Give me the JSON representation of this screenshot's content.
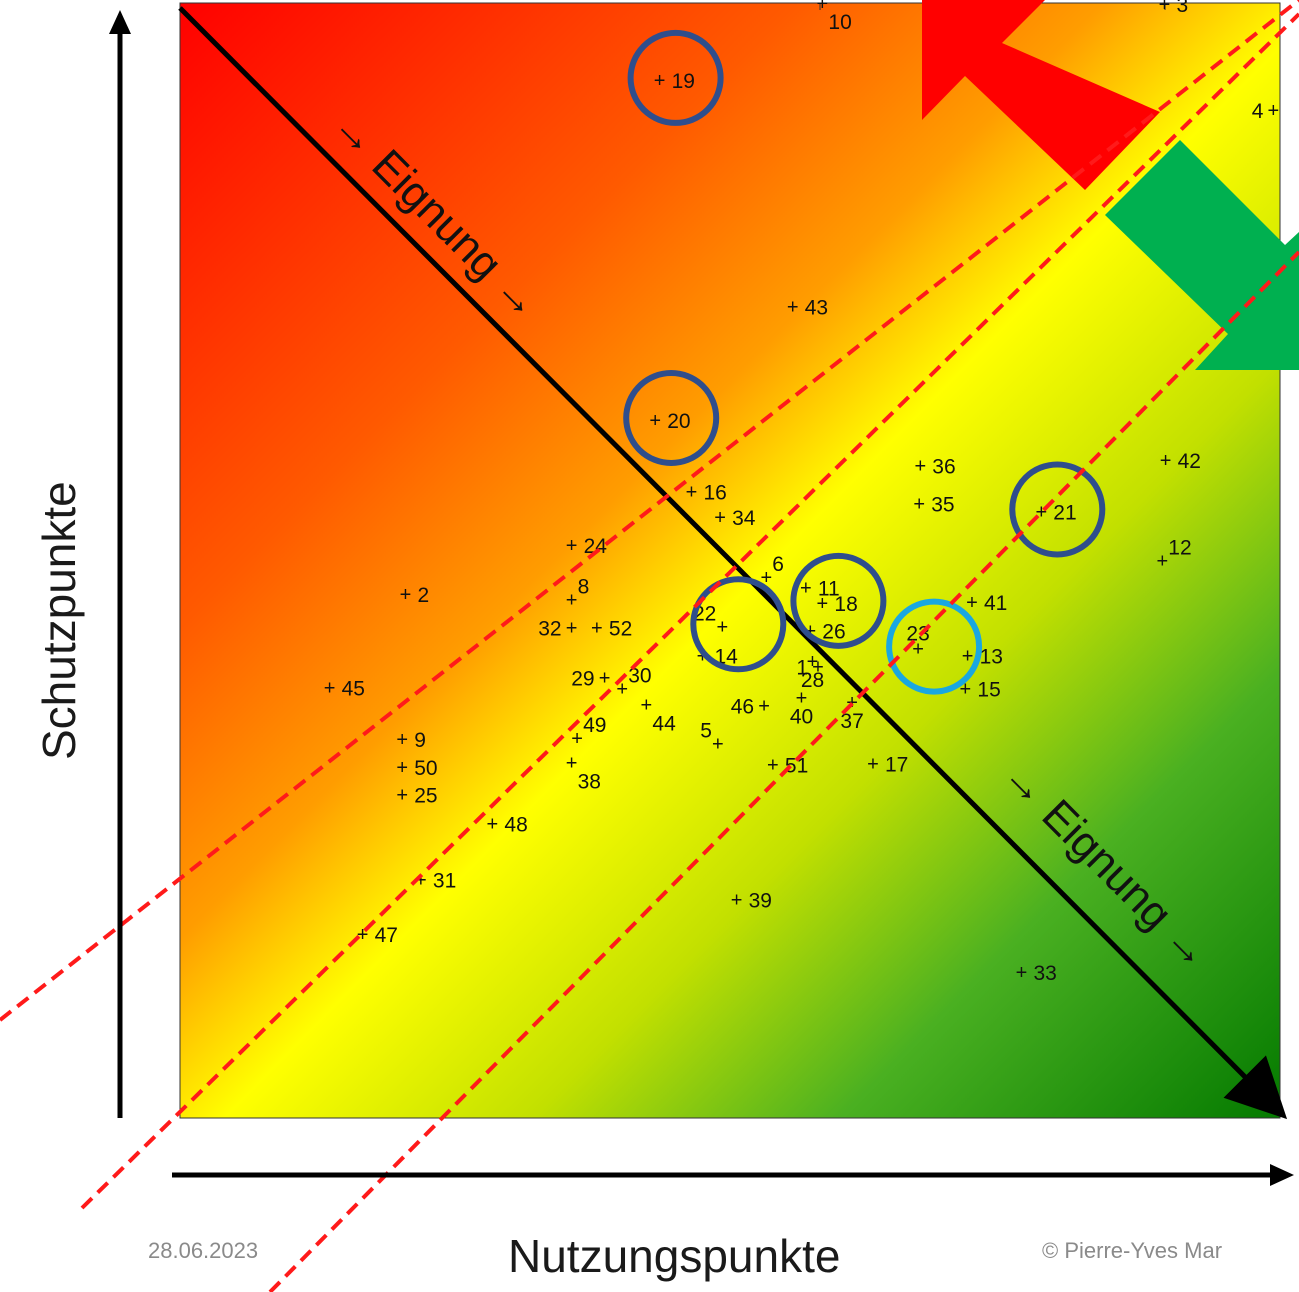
{
  "chart_data": {
    "type": "scatter",
    "xlabel": "Nutzungspunkte",
    "ylabel": "Schutzpunkte",
    "xlim": [
      0,
      100
    ],
    "ylim": [
      0,
      100
    ],
    "grid": false,
    "background": "diagonal gradient red (top-left) → orange → yellow (center band) → green (bottom-right)",
    "diagonal_label": "Eignung",
    "diagonal_label_arrow": "→ Eignung →",
    "points": [
      {
        "id": "2",
        "x": 20.5,
        "y": 47.0,
        "lab": "right"
      },
      {
        "id": "3",
        "x": 89.5,
        "y": 99.9,
        "lab": "right"
      },
      {
        "id": "4",
        "x": 99.4,
        "y": 90.4,
        "lab": "left"
      },
      {
        "id": "5",
        "x": 48.9,
        "y": 33.6,
        "lab": "above-left"
      },
      {
        "id": "6",
        "x": 53.3,
        "y": 48.5,
        "lab": "above-right"
      },
      {
        "id": "8",
        "x": 35.6,
        "y": 46.5,
        "lab": "above-right"
      },
      {
        "id": "9",
        "x": 20.2,
        "y": 34.0,
        "lab": "right"
      },
      {
        "id": "10",
        "x": 58.4,
        "y": 100.0,
        "lab": "below-right"
      },
      {
        "id": "11",
        "x": 56.9,
        "y": 47.6,
        "lab": "right"
      },
      {
        "id": "12",
        "x": 89.3,
        "y": 50.0,
        "lab": "above-right"
      },
      {
        "id": "13",
        "x": 71.6,
        "y": 41.5,
        "lab": "right"
      },
      {
        "id": "14",
        "x": 47.5,
        "y": 41.5,
        "lab": "right"
      },
      {
        "id": "15",
        "x": 71.4,
        "y": 38.5,
        "lab": "right"
      },
      {
        "id": "16",
        "x": 46.5,
        "y": 56.2,
        "lab": "right"
      },
      {
        "id": "17",
        "x": 63.0,
        "y": 31.8,
        "lab": "right"
      },
      {
        "id": "18",
        "x": 58.4,
        "y": 46.2,
        "lab": "right"
      },
      {
        "id": "19",
        "x": 43.6,
        "y": 93.1,
        "lab": "right"
      },
      {
        "id": "20",
        "x": 43.2,
        "y": 62.6,
        "lab": "right"
      },
      {
        "id": "21",
        "x": 78.3,
        "y": 54.4,
        "lab": "right"
      },
      {
        "id": "22",
        "x": 49.3,
        "y": 44.1,
        "lab": "above-left"
      },
      {
        "id": "23",
        "x": 67.1,
        "y": 42.1,
        "lab": "above"
      },
      {
        "id": "24",
        "x": 35.6,
        "y": 51.4,
        "lab": "right"
      },
      {
        "id": "25",
        "x": 20.2,
        "y": 29.0,
        "lab": "right"
      },
      {
        "id": "26",
        "x": 57.3,
        "y": 43.7,
        "lab": "right"
      },
      {
        "id": "28",
        "x": 57.5,
        "y": 41.0,
        "lab": "below"
      },
      {
        "id": "29",
        "x": 38.6,
        "y": 39.5,
        "lab": "left"
      },
      {
        "id": "30",
        "x": 40.2,
        "y": 38.5,
        "lab": "above-right"
      },
      {
        "id": "31",
        "x": 21.9,
        "y": 21.4,
        "lab": "right"
      },
      {
        "id": "32",
        "x": 35.6,
        "y": 44.0,
        "lab": "left"
      },
      {
        "id": "33",
        "x": 76.5,
        "y": 13.1,
        "lab": "right"
      },
      {
        "id": "34",
        "x": 49.1,
        "y": 53.9,
        "lab": "right"
      },
      {
        "id": "35",
        "x": 67.2,
        "y": 55.1,
        "lab": "right"
      },
      {
        "id": "36",
        "x": 67.3,
        "y": 58.5,
        "lab": "right"
      },
      {
        "id": "37",
        "x": 61.1,
        "y": 37.3,
        "lab": "below"
      },
      {
        "id": "38",
        "x": 35.6,
        "y": 31.9,
        "lab": "below-right"
      },
      {
        "id": "39",
        "x": 50.6,
        "y": 19.6,
        "lab": "right"
      },
      {
        "id": "40",
        "x": 56.5,
        "y": 37.7,
        "lab": "below"
      },
      {
        "id": "41",
        "x": 72.0,
        "y": 46.3,
        "lab": "right"
      },
      {
        "id": "42",
        "x": 89.6,
        "y": 59.0,
        "lab": "right"
      },
      {
        "id": "43",
        "x": 55.7,
        "y": 72.8,
        "lab": "right"
      },
      {
        "id": "44",
        "x": 42.4,
        "y": 37.1,
        "lab": "below-right"
      },
      {
        "id": "45",
        "x": 13.6,
        "y": 38.6,
        "lab": "right"
      },
      {
        "id": "46",
        "x": 53.1,
        "y": 37.0,
        "lab": "left"
      },
      {
        "id": "47",
        "x": 16.6,
        "y": 16.5,
        "lab": "right"
      },
      {
        "id": "48",
        "x": 28.4,
        "y": 26.4,
        "lab": "right"
      },
      {
        "id": "49",
        "x": 36.1,
        "y": 34.1,
        "lab": "above-right"
      },
      {
        "id": "50",
        "x": 20.2,
        "y": 31.5,
        "lab": "right"
      },
      {
        "id": "51",
        "x": 53.9,
        "y": 31.7,
        "lab": "right"
      },
      {
        "id": "52",
        "x": 37.9,
        "y": 44.0,
        "lab": "right"
      },
      {
        "id": "1",
        "x": 58.0,
        "y": 40.5,
        "lab": "left"
      }
    ],
    "highlighted_points": {
      "dark_blue_circles": [
        "19",
        "20",
        "22",
        "18",
        "21"
      ],
      "light_blue_circles": [
        "23"
      ]
    },
    "annotations": {
      "diagonal_line": "black arrow from top-left to bottom-right",
      "dashed_lines": "three red dashed diagonal lines running lower-left to upper-right",
      "arrows": [
        "red block arrow pointing up-left",
        "green block arrow pointing down-right"
      ]
    }
  },
  "footer": {
    "date": "28.06.2023",
    "copyright": "© Pierre-Yves Mar"
  },
  "colors": {
    "red": "#ff0000",
    "orange": "#ff8a00",
    "yellow": "#ffff00",
    "green": "#2eaa1e",
    "dark_green": "#047a00",
    "circle_dark": "#2f4e8c",
    "circle_light": "#1aa7e0",
    "dashed": "#ff1a1a",
    "arrow_red": "#ff0000",
    "arrow_green": "#00b050"
  }
}
